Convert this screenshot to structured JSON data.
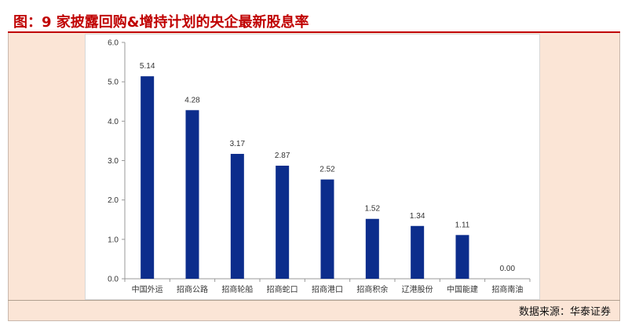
{
  "title": "图：9 家披露回购&增持计划的央企最新股息率",
  "source": "数据来源：华泰证券",
  "colors": {
    "bar": "#0c2d8c",
    "title_text": "#c00000",
    "panel_bg": "#fbe5d6"
  },
  "chart_data": {
    "type": "bar",
    "categories": [
      "中国外运",
      "招商公路",
      "招商轮船",
      "招商蛇口",
      "招商港口",
      "招商积余",
      "辽港股份",
      "中国能建",
      "招商南油"
    ],
    "values": [
      5.14,
      4.28,
      3.17,
      2.87,
      2.52,
      1.52,
      1.34,
      1.11,
      0.0
    ],
    "data_labels": [
      "5.14",
      "4.28",
      "3.17",
      "2.87",
      "2.52",
      "1.52",
      "1.34",
      "1.11",
      "0.00"
    ],
    "y_ticks": [
      "0.0",
      "1.0",
      "2.0",
      "3.0",
      "4.0",
      "5.0",
      "6.0"
    ],
    "ylim": [
      0,
      6
    ],
    "grid": false,
    "legend": "none"
  }
}
